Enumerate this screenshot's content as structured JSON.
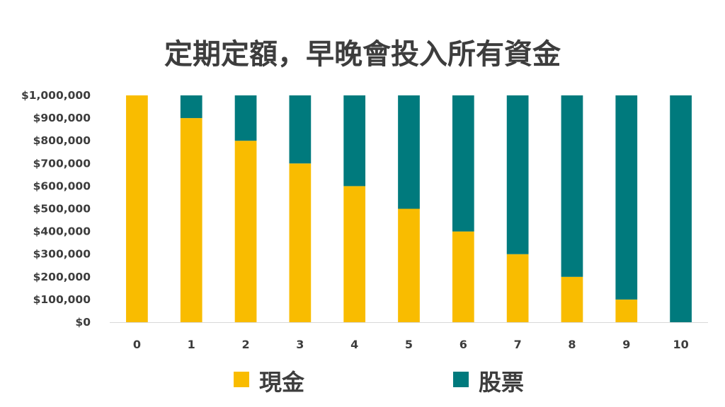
{
  "chart_data": {
    "type": "bar",
    "stacked": true,
    "title": "定期定額，早晚會投入所有資金",
    "xlabel": "",
    "ylabel": "",
    "categories": [
      "0",
      "1",
      "2",
      "3",
      "4",
      "5",
      "6",
      "7",
      "8",
      "9",
      "10"
    ],
    "series": [
      {
        "name": "現金",
        "color": "#F9BC00",
        "values": [
          1000000,
          900000,
          800000,
          700000,
          600000,
          500000,
          400000,
          300000,
          200000,
          100000,
          0
        ]
      },
      {
        "name": "股票",
        "color": "#007A7D",
        "values": [
          0,
          100000,
          200000,
          300000,
          400000,
          500000,
          600000,
          700000,
          800000,
          900000,
          1000000
        ]
      }
    ],
    "ylim": [
      0,
      1000000
    ],
    "yticks": [
      "$0",
      "$100,000",
      "$200,000",
      "$300,000",
      "$400,000",
      "$500,000",
      "$600,000",
      "$700,000",
      "$800,000",
      "$900,000",
      "$1,000,000"
    ],
    "grid": false,
    "legend": "bottom"
  }
}
